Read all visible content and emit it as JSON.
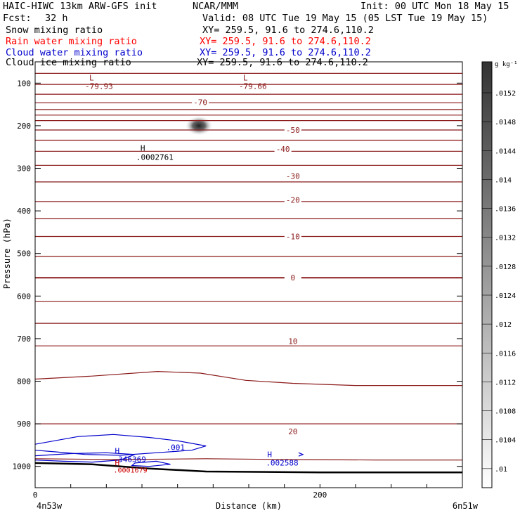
{
  "header": {
    "model_title": "HAIC-HIWC 13km ARW-GFS init",
    "org": "NCAR/MMM",
    "init_time": "Init: 00 UTC Mon 18 May 15",
    "fcst_label": "Fcst:",
    "fcst_value": "32 h",
    "valid_time": "Valid: 08 UTC Tue 19 May 15 (05 LST Tue 19 May 15)",
    "fields": [
      {
        "name": "Snow mixing ratio",
        "xy": "XY= 259.5, 91.6 to 274.6,110.2",
        "color": "#000000"
      },
      {
        "name": "Rain water mixing ratio",
        "xy": "XY= 259.5, 91.6 to 274.6,110.2",
        "color": "#ff0000"
      },
      {
        "name": "Cloud water mixing ratio",
        "xy": "XY= 259.5, 91.6 to 274.6,110.2",
        "color": "#0000cc"
      },
      {
        "name": "Cloud ice mixing ratio",
        "xy": "XY= 259.5, 91.6 to 274.6,110.2",
        "color": "#000000"
      }
    ]
  },
  "chart_data": {
    "type": "cross-section",
    "xlabel": "Distance (km)",
    "ylabel": "Pressure (hPa)",
    "xlim": [
      0,
      300
    ],
    "ylim": [
      1050,
      50
    ],
    "x_ticks": [
      0,
      200
    ],
    "y_ticks": [
      100,
      200,
      300,
      400,
      500,
      600,
      700,
      800,
      900,
      1000
    ],
    "x_endpoint_labels": [
      "4n53w",
      "6n51w"
    ],
    "colorbar": {
      "unit": "g kg⁻¹",
      "labels": [
        ".0152",
        ".0148",
        ".0144",
        ".014",
        ".0136",
        ".0132",
        ".0128",
        ".0124",
        ".012",
        ".0116",
        ".0112",
        ".0108",
        ".0104",
        ".01"
      ]
    },
    "temperature_contours": {
      "color": "#8b1a1a",
      "labels": [
        {
          "value": "-70",
          "x": 116,
          "p": 145
        },
        {
          "value": "-50",
          "x": 181,
          "p": 210
        },
        {
          "value": "-40",
          "x": 174,
          "p": 255
        },
        {
          "value": "-30",
          "x": 181,
          "p": 318
        },
        {
          "value": "-20",
          "x": 181,
          "p": 374
        },
        {
          "value": "-10",
          "x": 181,
          "p": 460
        },
        {
          "value": "0",
          "x": 181,
          "p": 557
        },
        {
          "value": "10",
          "x": 181,
          "p": 706
        },
        {
          "value": "20",
          "x": 181,
          "p": 918
        }
      ],
      "lines": [
        [
          [
            0,
            77
          ],
          [
            300,
            77
          ]
        ],
        [
          [
            0,
            103
          ],
          [
            300,
            103
          ]
        ],
        [
          [
            0,
            126
          ],
          [
            300,
            126
          ]
        ],
        [
          [
            0,
            146
          ],
          [
            300,
            146
          ]
        ],
        [
          [
            0,
            162
          ],
          [
            300,
            162
          ]
        ],
        [
          [
            0,
            175
          ],
          [
            300,
            175
          ]
        ],
        [
          [
            0,
            188
          ],
          [
            300,
            188
          ]
        ],
        [
          [
            0,
            210
          ],
          [
            300,
            210
          ]
        ],
        [
          [
            0,
            234
          ],
          [
            300,
            234
          ]
        ],
        [
          [
            0,
            260
          ],
          [
            300,
            260
          ]
        ],
        [
          [
            0,
            293
          ],
          [
            300,
            293
          ]
        ],
        [
          [
            0,
            332
          ],
          [
            300,
            332
          ]
        ],
        [
          [
            0,
            378
          ],
          [
            300,
            378
          ]
        ],
        [
          [
            0,
            418
          ],
          [
            300,
            418
          ]
        ],
        [
          [
            0,
            460
          ],
          [
            300,
            460
          ]
        ],
        [
          [
            0,
            507
          ],
          [
            300,
            507
          ]
        ],
        [
          [
            0,
            557
          ],
          [
            300,
            557
          ]
        ],
        [
          [
            0,
            613
          ],
          [
            300,
            613
          ]
        ],
        [
          [
            0,
            664
          ],
          [
            300,
            664
          ]
        ],
        [
          [
            0,
            717
          ],
          [
            300,
            717
          ]
        ],
        [
          [
            0,
            795
          ],
          [
            40,
            788
          ],
          [
            86,
            777
          ],
          [
            116,
            781
          ],
          [
            148,
            798
          ],
          [
            181,
            805
          ],
          [
            225,
            810
          ],
          [
            300,
            810
          ]
        ],
        [
          [
            0,
            900
          ],
          [
            300,
            900
          ]
        ],
        [
          [
            0,
            982
          ],
          [
            60,
            984
          ],
          [
            120,
            982
          ],
          [
            180,
            984
          ],
          [
            240,
            985
          ],
          [
            300,
            985
          ]
        ]
      ],
      "minima": [
        {
          "label": "L",
          "value": "-79.93",
          "x": 38,
          "p": 94
        },
        {
          "label": "L",
          "value": "-79.66",
          "x": 146,
          "p": 94
        }
      ]
    },
    "ice_maximum": {
      "label": "H",
      "value": ".0002761",
      "x": 72,
      "p": 265
    },
    "ice_blob": {
      "x": 115,
      "p": 200
    },
    "cloud_water": {
      "color": "#0000cc",
      "contour_label": ".001",
      "contour_label_pos": {
        "x": 92,
        "p": 955
      },
      "maxima": [
        {
          "label": "H",
          "value": ".346369",
          "x": 55,
          "p": 980
        },
        {
          "label": "H",
          "value": ".002588",
          "x": 162,
          "p": 988
        }
      ]
    },
    "rain_water": {
      "color": "#cc0000",
      "maxima": [
        {
          "label": "H",
          "value": ".0001679",
          "x": 55,
          "p": 1008
        }
      ]
    },
    "terrain": [
      [
        0,
        992
      ],
      [
        40,
        995
      ],
      [
        80,
        1005
      ],
      [
        120,
        1012
      ],
      [
        200,
        1014
      ],
      [
        300,
        1014
      ]
    ]
  }
}
